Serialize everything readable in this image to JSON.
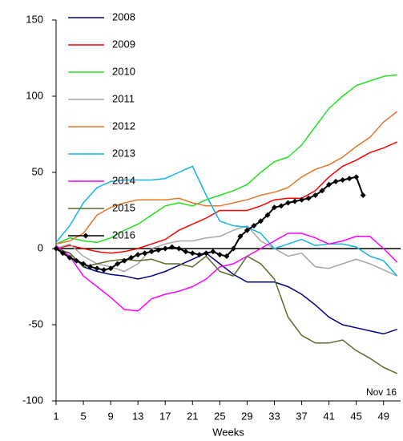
{
  "chart_data": {
    "type": "line",
    "x_label": "Weeks",
    "annotation": "Nov 16",
    "xlim": [
      1,
      51.5
    ],
    "ylim": [
      -100,
      150
    ],
    "xticks": [
      1,
      5,
      9,
      13,
      17,
      21,
      25,
      29,
      33,
      37,
      41,
      45,
      49
    ],
    "yticks": [
      -100,
      -50,
      0,
      50,
      100,
      150
    ],
    "x": [
      1,
      3,
      5,
      7,
      9,
      11,
      13,
      15,
      17,
      19,
      21,
      23,
      25,
      27,
      29,
      31,
      33,
      35,
      37,
      39,
      41,
      43,
      45,
      47,
      49,
      51
    ],
    "series": [
      {
        "name": "2008",
        "color": "#000080",
        "values": [
          0,
          -3,
          -12,
          -15,
          -17,
          -18,
          -20,
          -18,
          -15,
          -11,
          -7,
          -3,
          -10,
          -17,
          -22,
          -22,
          -22,
          -25,
          -30,
          -37,
          -45,
          -50,
          -52,
          -54,
          -56,
          -53
        ]
      },
      {
        "name": "2009",
        "color": "#ff0000",
        "values": [
          0,
          2,
          0,
          -2,
          -3,
          -2,
          0,
          3,
          6,
          12,
          16,
          20,
          25,
          25,
          25,
          28,
          32,
          33,
          33,
          38,
          47,
          54,
          58,
          63,
          66,
          70
        ]
      },
      {
        "name": "2010",
        "color": "#22e022",
        "values": [
          3,
          7,
          5,
          4,
          7,
          12,
          16,
          22,
          28,
          30,
          28,
          32,
          35,
          38,
          42,
          50,
          57,
          60,
          68,
          80,
          92,
          100,
          107,
          110,
          113,
          114
        ]
      },
      {
        "name": "2011",
        "color": "#a6a6a6",
        "values": [
          0,
          3,
          -5,
          -10,
          -12,
          -15,
          -10,
          0,
          3,
          5,
          5,
          7,
          8,
          12,
          15,
          5,
          0,
          -5,
          -3,
          -12,
          -13,
          -10,
          -7,
          -10,
          -14,
          -18
        ]
      },
      {
        "name": "2012",
        "color": "#e2772a",
        "values": [
          3,
          5,
          10,
          22,
          27,
          30,
          32,
          32,
          32,
          33,
          30,
          28,
          28,
          30,
          32,
          35,
          37,
          40,
          47,
          52,
          55,
          60,
          67,
          73,
          83,
          90
        ]
      },
      {
        "name": "2013",
        "color": "#14b4e8",
        "values": [
          4,
          15,
          30,
          40,
          44,
          45,
          45,
          45,
          46,
          50,
          54,
          35,
          18,
          15,
          14,
          10,
          0,
          3,
          6,
          2,
          3,
          3,
          1,
          -5,
          -8,
          -18
        ]
      },
      {
        "name": "2014",
        "color": "#ff00ff",
        "values": [
          2,
          -5,
          -18,
          -25,
          -32,
          -40,
          -41,
          -33,
          -30,
          -28,
          -25,
          -20,
          -12,
          -10,
          -5,
          0,
          5,
          10,
          10,
          7,
          3,
          5,
          8,
          8,
          0,
          -9
        ]
      },
      {
        "name": "2015",
        "color": "#5a6b2a",
        "values": [
          0,
          -3,
          -12,
          -10,
          -8,
          -7,
          -8,
          -7,
          -10,
          -10,
          -12,
          -5,
          -15,
          -18,
          -5,
          -10,
          -20,
          -45,
          -57,
          -62,
          -62,
          -60,
          -67,
          -72,
          -78,
          -82
        ]
      },
      {
        "name": "2016",
        "color": "#000000",
        "marker": "diamond",
        "x": [
          1,
          2,
          3,
          4,
          5,
          6,
          7,
          8,
          9,
          10,
          11,
          12,
          13,
          14,
          15,
          16,
          17,
          18,
          19,
          20,
          21,
          22,
          23,
          24,
          25,
          26,
          27,
          28,
          29,
          30,
          31,
          32,
          33,
          34,
          35,
          36,
          37,
          38,
          39,
          40,
          41,
          42,
          43,
          44,
          45,
          46
        ],
        "values": [
          0,
          -3,
          -6,
          -8,
          -10,
          -12,
          -13,
          -14,
          -13,
          -10,
          -8,
          -6,
          -4,
          -3,
          -2,
          -1,
          0,
          1,
          0,
          -2,
          -3,
          -4,
          -3,
          -2,
          -4,
          -5,
          0,
          8,
          12,
          15,
          18,
          22,
          27,
          28,
          30,
          31,
          32,
          33,
          35,
          38,
          42,
          44,
          45,
          46,
          47,
          35
        ]
      }
    ]
  }
}
